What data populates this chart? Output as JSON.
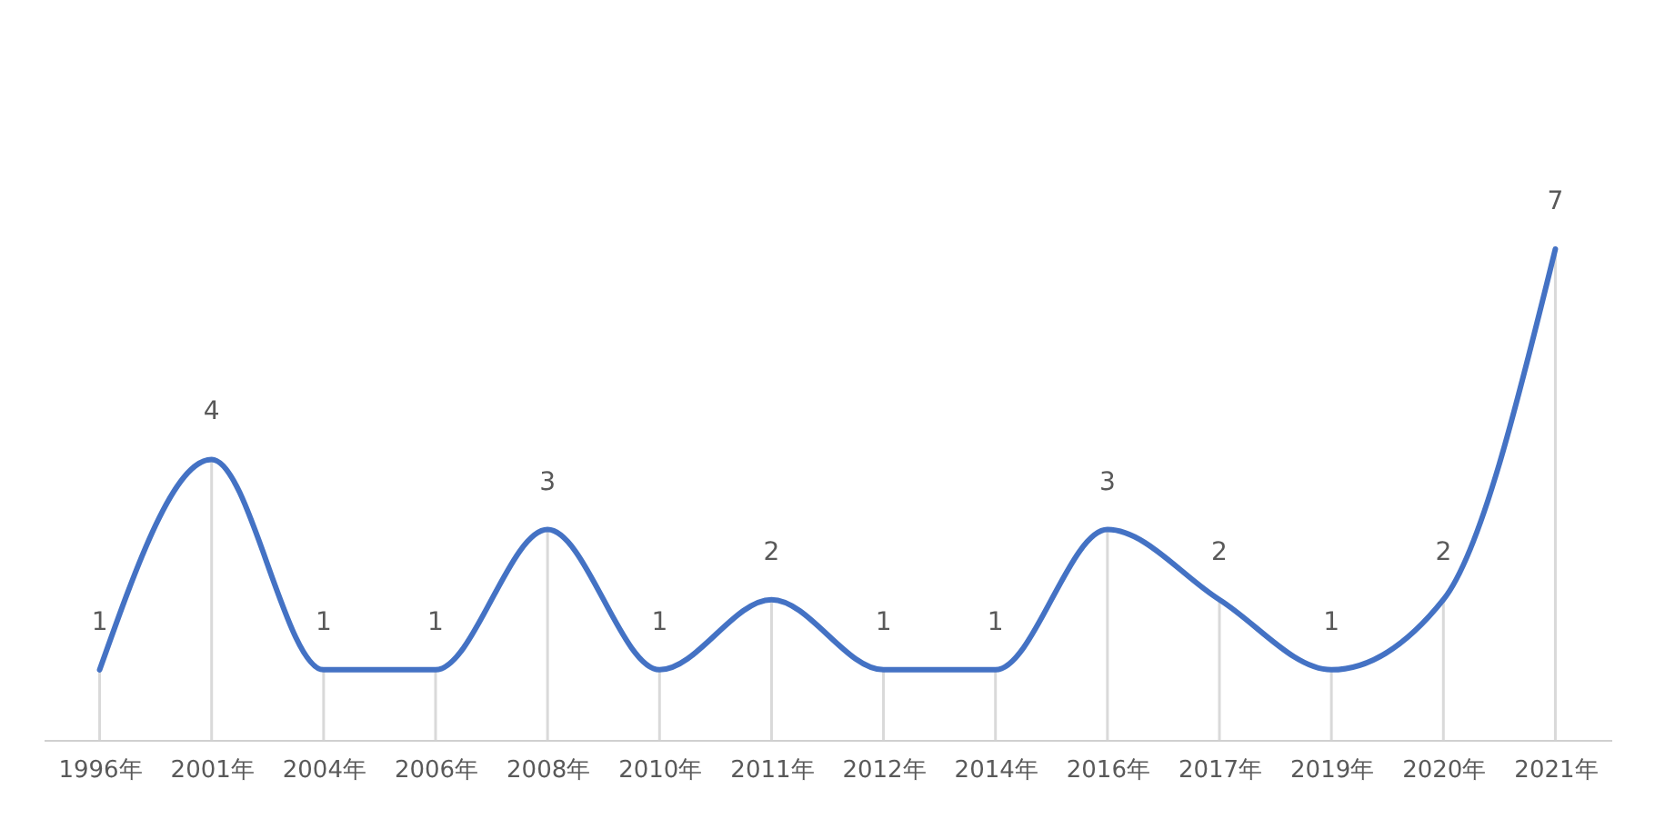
{
  "chart_data": {
    "type": "line",
    "categories": [
      "1996年",
      "2001年",
      "2004年",
      "2006年",
      "2008年",
      "2010年",
      "2011年",
      "2012年",
      "2014年",
      "2016年",
      "2017年",
      "2019年",
      "2020年",
      "2021年"
    ],
    "values": [
      1,
      4,
      1,
      1,
      3,
      1,
      2,
      1,
      1,
      3,
      2,
      1,
      2,
      7
    ],
    "color": "#4472c4",
    "data_labels": true,
    "grid": "x"
  }
}
